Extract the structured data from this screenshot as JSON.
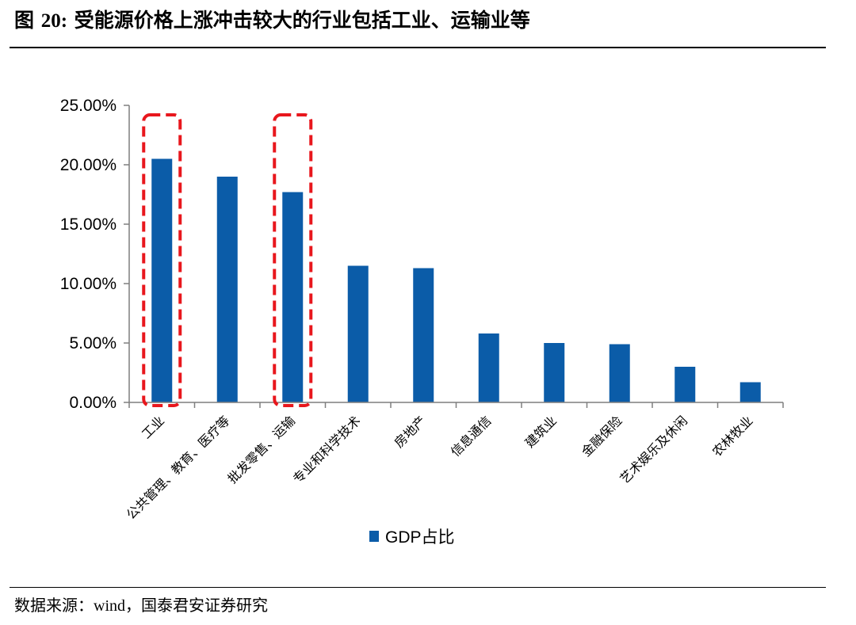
{
  "figure": {
    "label": "图",
    "number": "20:",
    "title": "受能源价格上涨冲击较大的行业包括工业、运输业等"
  },
  "source": {
    "prefix": "数据来源：",
    "name": "wind",
    "rest": "，国泰君安证券研究"
  },
  "colors": {
    "bar": "#0B5CA8",
    "highlight": "#E8171D",
    "axis": "#7F7F7F"
  },
  "chart_data": {
    "type": "bar",
    "categories": [
      "工业",
      "公共管理、教育、医疗等",
      "批发零售、运输",
      "专业和科学技术",
      "房地产",
      "信息通信",
      "建筑业",
      "金融保险",
      "艺术娱乐及休闲",
      "农林牧业"
    ],
    "series": [
      {
        "name": "GDP占比",
        "values": [
          20.5,
          19.0,
          17.7,
          11.5,
          11.3,
          5.8,
          5.0,
          4.9,
          3.0,
          1.7
        ]
      }
    ],
    "yticks": [
      "0.00%",
      "5.00%",
      "10.00%",
      "15.00%",
      "20.00%",
      "25.00%"
    ],
    "ylim": [
      0,
      25
    ],
    "highlighted_categories": [
      "工业",
      "批发零售、运输"
    ],
    "legend_position": "bottom-center",
    "grid": false
  }
}
